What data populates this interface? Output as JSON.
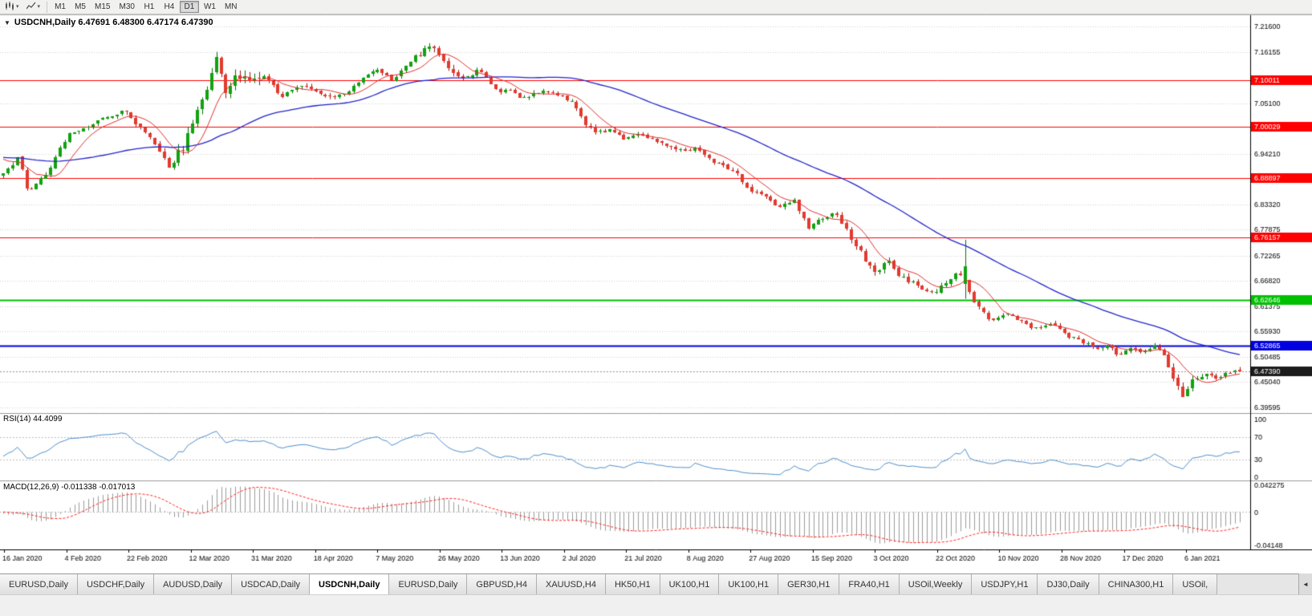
{
  "toolbar": {
    "timeframes": [
      {
        "label": "M1",
        "active": false
      },
      {
        "label": "M5",
        "active": false
      },
      {
        "label": "M15",
        "active": false
      },
      {
        "label": "M30",
        "active": false
      },
      {
        "label": "H1",
        "active": false
      },
      {
        "label": "H4",
        "active": false
      },
      {
        "label": "D1",
        "active": true
      },
      {
        "label": "W1",
        "active": false
      },
      {
        "label": "MN",
        "active": false
      }
    ]
  },
  "chart": {
    "title_line": "USDCNH,Daily 6.47691 6.48300 6.47174 6.47390",
    "rsi_label": "RSI(14) 44.4099",
    "macd_label": "MACD(12,26,9) -0.011338 -0.017013",
    "dropdown_icon": "▼"
  },
  "chart_data": {
    "type": "candlestick",
    "symbol": "USDCNH",
    "period": "Daily",
    "ohlc_display": {
      "open": "6.47691",
      "high": "6.48300",
      "low": "6.47174",
      "close": "6.47390"
    },
    "ylim": [
      6.386,
      7.242
    ],
    "price_axis_labels": [
      "7.21600",
      "7.16155",
      "7.05100",
      "6.94210",
      "6.83320",
      "6.77875",
      "6.72265",
      "6.66820",
      "6.61375",
      "6.55930",
      "6.50485",
      "6.45040",
      "6.39595"
    ],
    "x_labels": [
      "16 Jan 2020",
      "4 Feb 2020",
      "22 Feb 2020",
      "12 Mar 2020",
      "31 Mar 2020",
      "18 Apr 2020",
      "7 May 2020",
      "26 May 2020",
      "13 Jun 2020",
      "2 Jul 2020",
      "21 Jul 2020",
      "8 Aug 2020",
      "27 Aug 2020",
      "15 Sep 2020",
      "3 Oct 2020",
      "22 Oct 2020",
      "10 Nov 2020",
      "28 Nov 2020",
      "17 Dec 2020",
      "6 Jan 2021"
    ],
    "hlines": [
      {
        "value": 7.10011,
        "label": "7.10011",
        "color": "#ff0000",
        "width": 1
      },
      {
        "value": 7.00029,
        "label": "7.00029",
        "color": "#ff0000",
        "width": 1
      },
      {
        "value": 6.88897,
        "label": "6.88897",
        "color": "#ff0000",
        "width": 1
      },
      {
        "value": 6.76157,
        "label": "6.76157",
        "color": "#ff0000",
        "width": 1
      },
      {
        "value": 6.62646,
        "label": "6.62646",
        "color": "#00c000",
        "width": 2
      },
      {
        "value": 6.52865,
        "label": "6.52865",
        "color": "#0000e0",
        "width": 2
      }
    ],
    "current_price": {
      "value": 6.4739,
      "label": "6.47390",
      "box_color": "#1c1c1c"
    },
    "candles": {
      "count": 262,
      "up_fill": "#11a211",
      "up_stroke": "#066d06",
      "down_fill": "#e23a2e",
      "down_stroke": "#a51111"
    },
    "price_path": [
      [
        0.0,
        6.895
      ],
      [
        0.012,
        6.932
      ],
      [
        0.02,
        6.862
      ],
      [
        0.035,
        6.902
      ],
      [
        0.053,
        6.985
      ],
      [
        0.068,
        7.002
      ],
      [
        0.085,
        7.022
      ],
      [
        0.1,
        7.035
      ],
      [
        0.112,
        6.995
      ],
      [
        0.125,
        6.958
      ],
      [
        0.135,
        6.922
      ],
      [
        0.145,
        6.952
      ],
      [
        0.155,
        7.015
      ],
      [
        0.165,
        7.09
      ],
      [
        0.172,
        7.158
      ],
      [
        0.18,
        7.085
      ],
      [
        0.19,
        7.122
      ],
      [
        0.2,
        7.095
      ],
      [
        0.212,
        7.112
      ],
      [
        0.225,
        7.062
      ],
      [
        0.24,
        7.095
      ],
      [
        0.255,
        7.078
      ],
      [
        0.27,
        7.062
      ],
      [
        0.285,
        7.092
      ],
      [
        0.3,
        7.128
      ],
      [
        0.315,
        7.098
      ],
      [
        0.33,
        7.138
      ],
      [
        0.345,
        7.172
      ],
      [
        0.357,
        7.145
      ],
      [
        0.37,
        7.108
      ],
      [
        0.385,
        7.122
      ],
      [
        0.4,
        7.082
      ],
      [
        0.42,
        7.065
      ],
      [
        0.435,
        7.078
      ],
      [
        0.45,
        7.068
      ],
      [
        0.462,
        7.052
      ],
      [
        0.472,
        7.002
      ],
      [
        0.482,
        6.988
      ],
      [
        0.492,
        6.998
      ],
      [
        0.502,
        6.972
      ],
      [
        0.512,
        6.99
      ],
      [
        0.525,
        6.975
      ],
      [
        0.54,
        6.955
      ],
      [
        0.551,
        6.945
      ],
      [
        0.562,
        6.952
      ],
      [
        0.575,
        6.928
      ],
      [
        0.59,
        6.905
      ],
      [
        0.601,
        6.872
      ],
      [
        0.615,
        6.845
      ],
      [
        0.628,
        6.825
      ],
      [
        0.64,
        6.84
      ],
      [
        0.651,
        6.782
      ],
      [
        0.662,
        6.8
      ],
      [
        0.672,
        6.818
      ],
      [
        0.683,
        6.775
      ],
      [
        0.695,
        6.72
      ],
      [
        0.705,
        6.695
      ],
      [
        0.715,
        6.712
      ],
      [
        0.725,
        6.682
      ],
      [
        0.735,
        6.665
      ],
      [
        0.745,
        6.65
      ],
      [
        0.752,
        6.642
      ],
      [
        0.762,
        6.662
      ],
      [
        0.772,
        6.688
      ],
      [
        0.778,
        6.668
      ],
      [
        0.785,
        6.625
      ],
      [
        0.793,
        6.6
      ],
      [
        0.799,
        6.585
      ],
      [
        0.81,
        6.605
      ],
      [
        0.82,
        6.58
      ],
      [
        0.832,
        6.568
      ],
      [
        0.845,
        6.578
      ],
      [
        0.851,
        6.572
      ],
      [
        0.862,
        6.552
      ],
      [
        0.872,
        6.538
      ],
      [
        0.882,
        6.525
      ],
      [
        0.892,
        6.532
      ],
      [
        0.901,
        6.508
      ],
      [
        0.912,
        6.52
      ],
      [
        0.922,
        6.512
      ],
      [
        0.932,
        6.528
      ],
      [
        0.94,
        6.505
      ],
      [
        0.949,
        6.455
      ],
      [
        0.955,
        6.425
      ],
      [
        0.962,
        6.448
      ],
      [
        0.97,
        6.462
      ],
      [
        0.98,
        6.455
      ],
      [
        0.99,
        6.468
      ],
      [
        1.0,
        6.474
      ]
    ],
    "base_volatility": 0.005,
    "volatility_zones": [
      [
        0.13,
        0.21,
        0.012
      ],
      [
        0.33,
        0.365,
        0.008
      ],
      [
        0.68,
        0.735,
        0.0075
      ],
      [
        0.94,
        0.975,
        0.0085
      ]
    ],
    "spike_candle": {
      "x": 0.778,
      "open": 6.662,
      "close": 6.7,
      "high": 6.757,
      "low": 6.63
    },
    "last_candle": {
      "open": 6.47691,
      "high": 6.483,
      "low": 6.47174,
      "close": 6.4739
    },
    "moving_averages": [
      {
        "name": "fast",
        "period": 8,
        "color": "#e03030",
        "width": 1
      },
      {
        "name": "slow",
        "period": 45,
        "color": "#2424cc",
        "width": 1.3
      }
    ],
    "rsi": {
      "period": 14,
      "value": 44.4099,
      "axis_labels": [
        "100",
        "70",
        "30",
        "0"
      ],
      "levels": [
        70,
        30
      ],
      "color": "#4f8fca"
    },
    "macd": {
      "fast": 12,
      "slow": 26,
      "signal": 9,
      "value": -0.011338,
      "signal_value": -0.017013,
      "axis_top_label": "0.042275",
      "axis_zero_label": "0",
      "axis_bottom_label": "-0.04148",
      "bar_color": "#9c9c9c",
      "signal_color": "#ff2222"
    }
  },
  "tabs": {
    "scroll_left_icon": "◄",
    "items": [
      {
        "label": "EURUSD,Daily",
        "active": false
      },
      {
        "label": "USDCHF,Daily",
        "active": false
      },
      {
        "label": "AUDUSD,Daily",
        "active": false
      },
      {
        "label": "USDCAD,Daily",
        "active": false
      },
      {
        "label": "USDCNH,Daily",
        "active": true
      },
      {
        "label": "EURUSD,Daily",
        "active": false
      },
      {
        "label": "GBPUSD,H4",
        "active": false
      },
      {
        "label": "XAUUSD,H4",
        "active": false
      },
      {
        "label": "HK50,H1",
        "active": false
      },
      {
        "label": "UK100,H1",
        "active": false
      },
      {
        "label": "UK100,H1",
        "active": false
      },
      {
        "label": "GER30,H1",
        "active": false
      },
      {
        "label": "FRA40,H1",
        "active": false
      },
      {
        "label": "USOil,Weekly",
        "active": false
      },
      {
        "label": "USDJPY,H1",
        "active": false
      },
      {
        "label": "DJ30,Daily",
        "active": false
      },
      {
        "label": "CHINA300,H1",
        "active": false
      },
      {
        "label": "USOil,",
        "active": false
      }
    ]
  }
}
